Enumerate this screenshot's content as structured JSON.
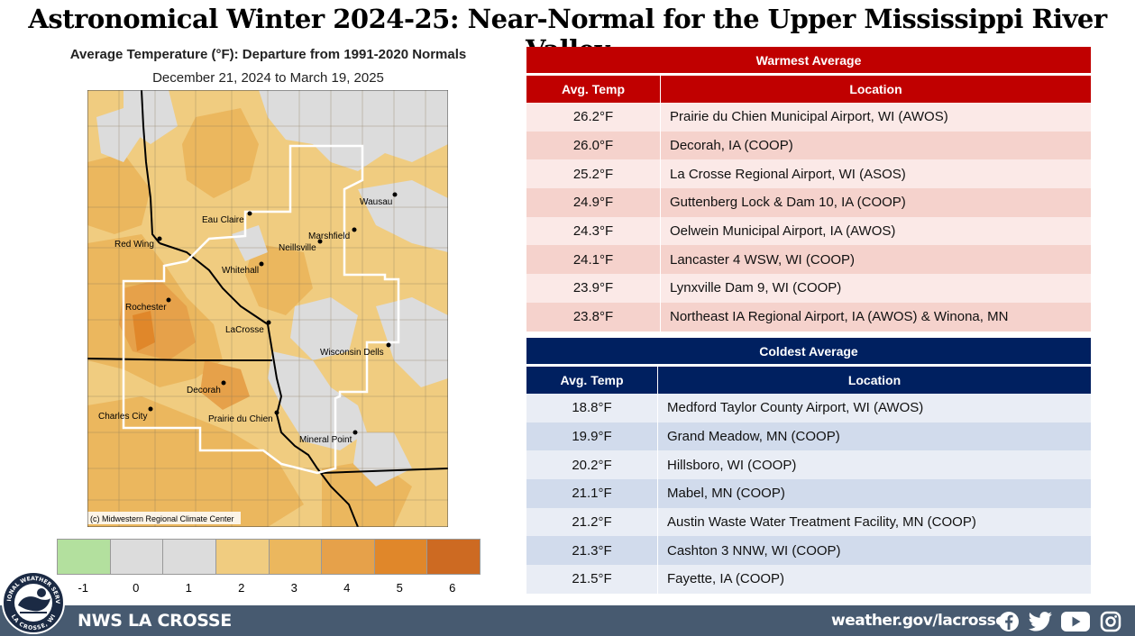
{
  "title": "Astronomical Winter 2024-25:  Near-Normal for the Upper Mississippi River Valley",
  "map": {
    "title": "Average Temperature (°F): Departure from 1991-2020 Normals",
    "subtitle": "December 21, 2024 to March 19, 2025",
    "credit": "(c) Midwestern Regional Climate Center",
    "cities": [
      {
        "name": "Eau Claire"
      },
      {
        "name": "Wausau"
      },
      {
        "name": "Red Wing"
      },
      {
        "name": "Marshfield"
      },
      {
        "name": "Neillsville"
      },
      {
        "name": "Whitehall"
      },
      {
        "name": "Rochester"
      },
      {
        "name": "LaCrosse"
      },
      {
        "name": "Wisconsin Dells"
      },
      {
        "name": "Decorah"
      },
      {
        "name": "Charles City"
      },
      {
        "name": "Prairie du Chien"
      },
      {
        "name": "Mineral Point"
      }
    ],
    "legend": {
      "colors": [
        "#b3e09e",
        "#dcdcdc",
        "#dcdcdc",
        "#f0cc80",
        "#ebb75e",
        "#e6a14a",
        "#e0872a",
        "#cd6a22"
      ],
      "ticks": [
        "-1",
        "0",
        "1",
        "2",
        "3",
        "4",
        "5",
        "6"
      ]
    }
  },
  "warmest": {
    "title": "Warmest  Average",
    "col_temp": "Avg. Temp",
    "col_loc": "Location",
    "rows": [
      {
        "temp": "26.2°F",
        "loc": "Prairie du Chien Municipal Airport, WI (AWOS)"
      },
      {
        "temp": "26.0°F",
        "loc": "Decorah, IA (COOP)"
      },
      {
        "temp": "25.2°F",
        "loc": "La Crosse Regional Airport, WI (ASOS)"
      },
      {
        "temp": "24.9°F",
        "loc": "Guttenberg Lock & Dam 10, IA (COOP)"
      },
      {
        "temp": "24.3°F",
        "loc": "Oelwein Municipal Airport, IA (AWOS)"
      },
      {
        "temp": "24.1°F",
        "loc": "Lancaster 4 WSW, WI (COOP)"
      },
      {
        "temp": "23.9°F",
        "loc": "Lynxville Dam 9, WI (COOP)"
      },
      {
        "temp": "23.8°F",
        "loc": "Northeast IA Regional Airport, IA (AWOS) & Winona, MN"
      }
    ]
  },
  "coldest": {
    "title": "Coldest Average",
    "col_temp": "Avg. Temp",
    "col_loc": "Location",
    "rows": [
      {
        "temp": "18.8°F",
        "loc": "Medford Taylor County Airport, WI (AWOS)"
      },
      {
        "temp": "19.9°F",
        "loc": "Grand Meadow, MN (COOP)"
      },
      {
        "temp": "20.2°F",
        "loc": "Hillsboro, WI (COOP)"
      },
      {
        "temp": "21.1°F",
        "loc": "Mabel, MN (COOP)"
      },
      {
        "temp": "21.2°F",
        "loc": "Austin Waste Water Treatment Facility, MN (COOP)"
      },
      {
        "temp": "21.3°F",
        "loc": "Cashton 3 NNW, WI (COOP)"
      },
      {
        "temp": "21.5°F",
        "loc": "Fayette, IA (COOP)"
      }
    ]
  },
  "footer": {
    "office": "NWS LA CROSSE",
    "website": "weather.gov/lacrosse",
    "logo_text_top": "NATIONAL WEATHER SERVICE",
    "logo_text_bottom": "LA CROSSE, WI",
    "social": [
      "facebook-icon",
      "twitter-icon",
      "youtube-icon",
      "instagram-icon"
    ]
  },
  "colors": {
    "warm_header": "#c00000",
    "cold_header": "#002060",
    "warm_row_a": "#fbe9e7",
    "warm_row_b": "#f5d2cc",
    "cold_row_a": "#e9edf5",
    "cold_row_b": "#d1dbec",
    "footer_bg": "#475a70"
  }
}
